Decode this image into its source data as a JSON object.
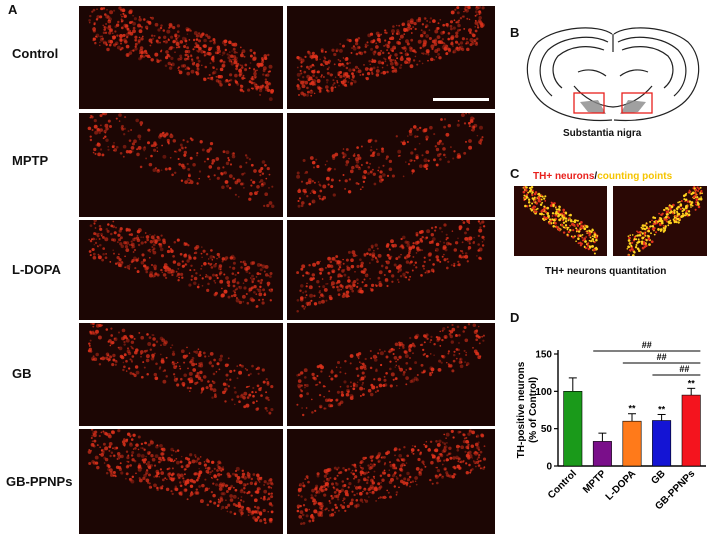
{
  "panels": {
    "a": {
      "letter": "A",
      "rows": [
        "Control",
        "MPTP",
        "L-DOPA",
        "GB",
        "GB-PPNPs"
      ]
    },
    "b": {
      "letter": "B",
      "caption": "Substantia nigra"
    },
    "c": {
      "letter": "C",
      "title_part1": "TH+ neurons",
      "title_sep": "/",
      "title_part2": "counting points",
      "caption": "TH+ neurons quantitation"
    },
    "d": {
      "letter": "D"
    }
  },
  "colors": {
    "stain_red": "#e0321c",
    "counting_yellow": "#ffd21e",
    "title_red": "#e8201c",
    "title_yellow": "#f5c400",
    "scale_bar": "#ffffff"
  },
  "chart_data": {
    "type": "bar",
    "categories": [
      "Control",
      "MPTP",
      "L-DOPA",
      "GB",
      "GB-PPNPs"
    ],
    "values": [
      100,
      33,
      60,
      61,
      95
    ],
    "errors": [
      18,
      11,
      10,
      8,
      9
    ],
    "bar_colors": [
      "#1a9a1a",
      "#7a0f8a",
      "#ff7a1a",
      "#1414d4",
      "#f4141e"
    ],
    "ylabel": "TH-positive neurons\n(% of Control)",
    "ylim": [
      0,
      150
    ],
    "yticks": [
      0,
      50,
      100,
      150
    ],
    "sig_above_bars": [
      "",
      "",
      "**",
      "**",
      "**"
    ],
    "brackets": [
      {
        "from": "MPTP",
        "to": "GB-PPNPs",
        "label": "##"
      },
      {
        "from": "L-DOPA",
        "to": "GB-PPNPs",
        "label": "##"
      },
      {
        "from": "GB",
        "to": "GB-PPNPs",
        "label": "##"
      }
    ]
  }
}
